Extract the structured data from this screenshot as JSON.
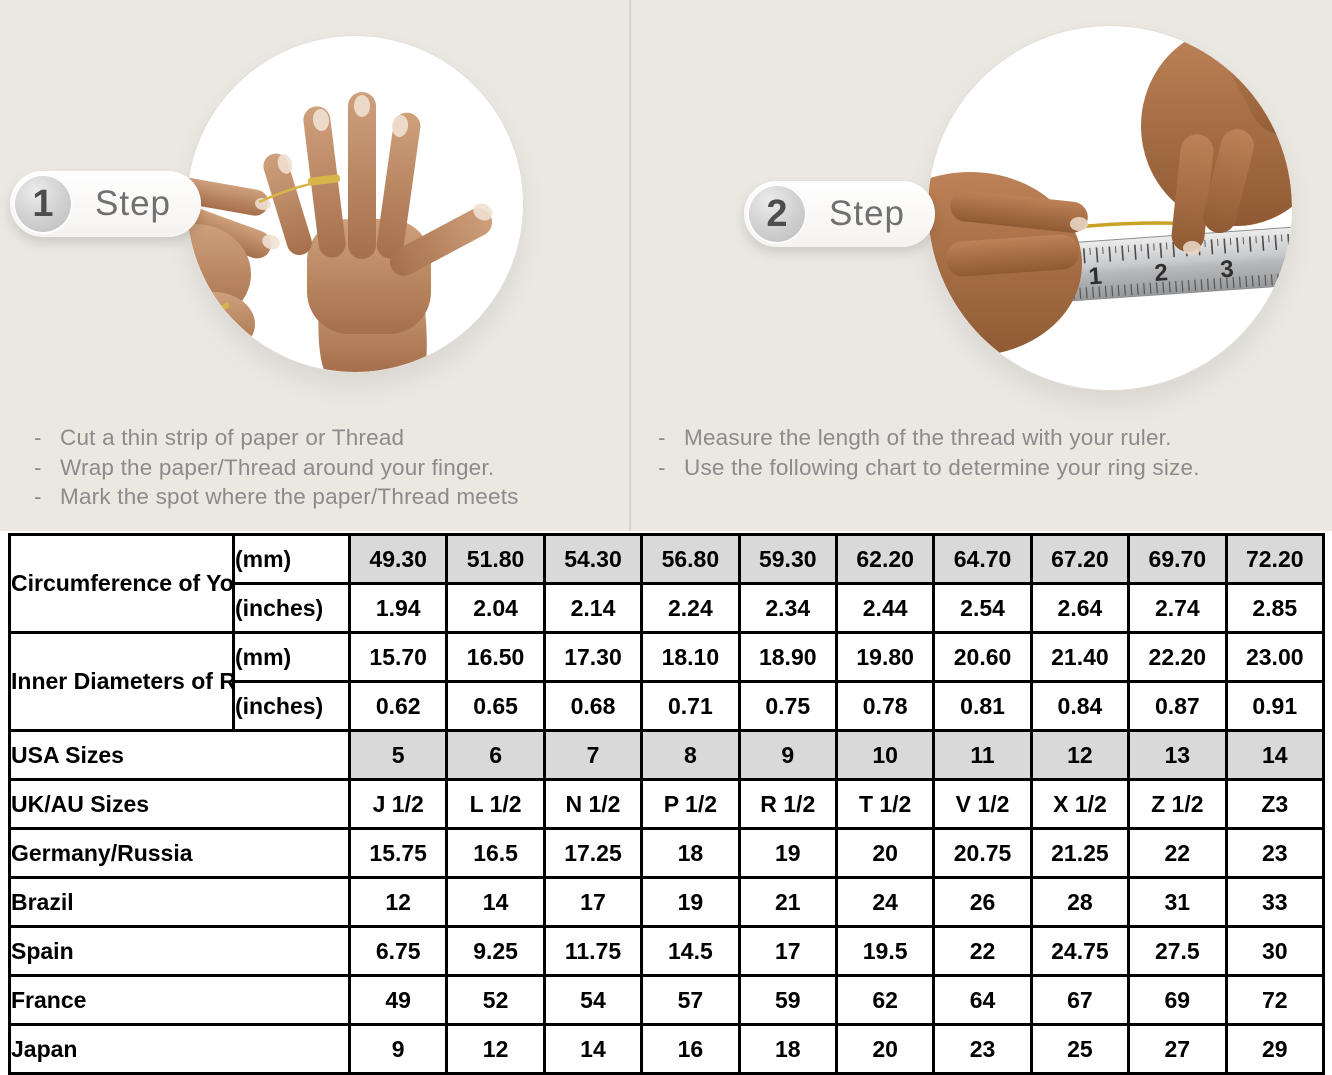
{
  "bullet_char": "-",
  "steps": [
    {
      "number": "1",
      "label": "Step",
      "instructions": [
        "Cut a thin strip of paper or Thread",
        "Wrap the paper/Thread around your finger.",
        "Mark the spot where the paper/Thread meets"
      ]
    },
    {
      "number": "2",
      "label": "Step",
      "instructions": [
        "Measure the length of the thread with your ruler.",
        "Use the following chart to determine your ring size."
      ],
      "ruler_marks": [
        "1",
        "2",
        "3"
      ]
    }
  ],
  "size_chart": {
    "measure_groups": [
      {
        "label": "Circumference of Your Finger",
        "rows": [
          {
            "unit": "(mm)",
            "shaded": true,
            "values": [
              "49.30",
              "51.80",
              "54.30",
              "56.80",
              "59.30",
              "62.20",
              "64.70",
              "67.20",
              "69.70",
              "72.20"
            ]
          },
          {
            "unit": "(inches)",
            "shaded": false,
            "values": [
              "1.94",
              "2.04",
              "2.14",
              "2.24",
              "2.34",
              "2.44",
              "2.54",
              "2.64",
              "2.74",
              "2.85"
            ]
          }
        ]
      },
      {
        "label": "Inner Diameters of Rings",
        "rows": [
          {
            "unit": "(mm)",
            "shaded": false,
            "values": [
              "15.70",
              "16.50",
              "17.30",
              "18.10",
              "18.90",
              "19.80",
              "20.60",
              "21.40",
              "22.20",
              "23.00"
            ]
          },
          {
            "unit": "(inches)",
            "shaded": false,
            "values": [
              "0.62",
              "0.65",
              "0.68",
              "0.71",
              "0.75",
              "0.78",
              "0.81",
              "0.84",
              "0.87",
              "0.91"
            ]
          }
        ]
      }
    ],
    "size_rows": [
      {
        "label": "USA Sizes",
        "shaded": true,
        "values": [
          "5",
          "6",
          "7",
          "8",
          "9",
          "10",
          "11",
          "12",
          "13",
          "14"
        ]
      },
      {
        "label": "UK/AU Sizes",
        "shaded": false,
        "values": [
          "J 1/2",
          "L 1/2",
          "N 1/2",
          "P 1/2",
          "R 1/2",
          "T 1/2",
          "V 1/2",
          "X 1/2",
          "Z 1/2",
          "Z3"
        ]
      },
      {
        "label": "Germany/Russia",
        "shaded": false,
        "values": [
          "15.75",
          "16.5",
          "17.25",
          "18",
          "19",
          "20",
          "20.75",
          "21.25",
          "22",
          "23"
        ]
      },
      {
        "label": "Brazil",
        "shaded": false,
        "values": [
          "12",
          "14",
          "17",
          "19",
          "21",
          "24",
          "26",
          "28",
          "31",
          "33"
        ]
      },
      {
        "label": "Spain",
        "shaded": false,
        "values": [
          "6.75",
          "9.25",
          "11.75",
          "14.5",
          "17",
          "19.5",
          "22",
          "24.75",
          "27.5",
          "30"
        ]
      },
      {
        "label": "France",
        "shaded": false,
        "values": [
          "49",
          "52",
          "54",
          "57",
          "59",
          "62",
          "64",
          "67",
          "69",
          "72"
        ]
      },
      {
        "label": "Japan",
        "shaded": false,
        "values": [
          "9",
          "12",
          "14",
          "16",
          "18",
          "20",
          "23",
          "25",
          "27",
          "29"
        ]
      }
    ]
  },
  "colors": {
    "page_background": "#ebe8e2",
    "shaded_cell": "#d9d9d9",
    "table_border": "#000000",
    "instruction_text": "#8b8b8b",
    "badge_text": "#707070",
    "thread_gold": "#c9a227"
  }
}
